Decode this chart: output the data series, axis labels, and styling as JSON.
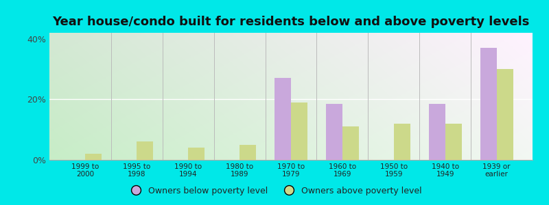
{
  "title": "Year house/condo built for residents below and above poverty levels",
  "categories": [
    "1999 to\n2000",
    "1995 to\n1998",
    "1990 to\n1994",
    "1980 to\n1989",
    "1970 to\n1979",
    "1960 to\n1969",
    "1950 to\n1959",
    "1940 to\n1949",
    "1939 or\nearlier"
  ],
  "below_poverty": [
    0.0,
    0.0,
    0.0,
    0.0,
    27.0,
    18.5,
    0.0,
    18.5,
    37.0
  ],
  "above_poverty": [
    2.0,
    6.0,
    4.0,
    5.0,
    19.0,
    11.0,
    12.0,
    12.0,
    30.0
  ],
  "below_color": "#c9a8dc",
  "above_color": "#ccd98a",
  "background_outer": "#00e8e8",
  "ylim": [
    0,
    42
  ],
  "yticks": [
    0,
    20,
    40
  ],
  "ytick_labels": [
    "0%",
    "20%",
    "40%"
  ],
  "bar_width": 0.32,
  "title_fontsize": 13,
  "legend_below_label": "Owners below poverty level",
  "legend_above_label": "Owners above poverty level"
}
